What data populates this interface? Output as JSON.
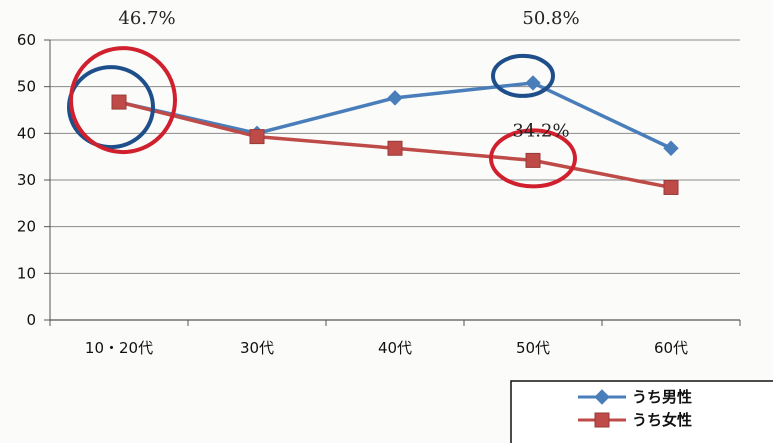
{
  "chart_data": {
    "type": "line",
    "categories": [
      "10・20代",
      "30代",
      "40代",
      "50代",
      "60代"
    ],
    "series": [
      {
        "name": "うち男性",
        "values": [
          46.7,
          40.0,
          47.6,
          50.8,
          36.8
        ],
        "color": "#4a7ebb",
        "marker": "diamond"
      },
      {
        "name": "うち女性",
        "values": [
          46.7,
          39.3,
          36.8,
          34.2,
          28.4
        ],
        "color": "#be4b48",
        "marker": "square"
      }
    ],
    "ylim": [
      0,
      60
    ],
    "yticks": [
      0,
      10,
      20,
      30,
      40,
      50,
      60
    ],
    "grid": true,
    "legend": "bottom-right",
    "annotations": [
      {
        "text": "46.7%",
        "category": "10・20代",
        "value": 46.7
      },
      {
        "text": "50.8%",
        "category": "50代",
        "value": 50.8
      },
      {
        "text": "34.2%",
        "category": "50代",
        "value": 34.2
      }
    ],
    "highlights": [
      {
        "category": "10・20代",
        "value": 46.7,
        "color": "#1f4f8a",
        "shape": "circle"
      },
      {
        "category": "10・20代",
        "value": 46.7,
        "color": "#d0202e",
        "shape": "circle"
      },
      {
        "category": "50代",
        "value": 50.8,
        "color": "#1f4f8a",
        "shape": "ellipse"
      },
      {
        "category": "50代",
        "value": 34.2,
        "color": "#d0202e",
        "shape": "ellipse"
      }
    ]
  }
}
